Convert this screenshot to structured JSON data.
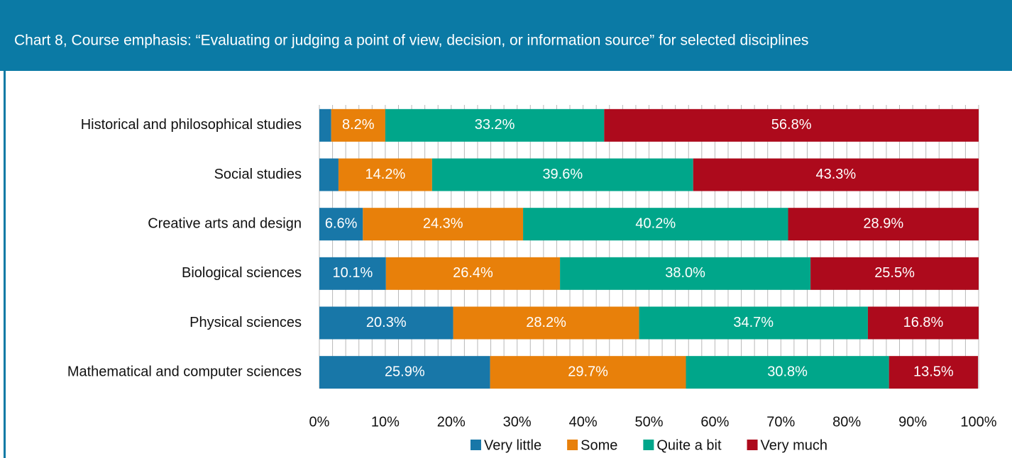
{
  "chart_data": {
    "type": "stacked-barh",
    "title": "Chart 8, Course emphasis: “Evaluating or judging a point of view, decision, or information source” for selected disciplines",
    "categories": [
      "Historical and philosophical studies",
      "Social studies",
      "Creative arts and design",
      "Biological sciences",
      "Physical sciences",
      "Mathematical and computer sciences"
    ],
    "series": [
      {
        "name": "Very little",
        "color": "#1877a8",
        "values": [
          1.8,
          2.9,
          6.6,
          10.1,
          20.3,
          25.9
        ],
        "value_labels": [
          null,
          null,
          "6.6%",
          "10.1%",
          "20.3%",
          "25.9%"
        ]
      },
      {
        "name": "Some",
        "color": "#e8800a",
        "values": [
          8.2,
          14.2,
          24.3,
          26.4,
          28.2,
          29.7
        ],
        "value_labels": [
          "8.2%",
          "14.2%",
          "24.3%",
          "26.4%",
          "28.2%",
          "29.7%"
        ]
      },
      {
        "name": "Quite a bit",
        "color": "#00a68a",
        "values": [
          33.2,
          39.6,
          40.2,
          38.0,
          34.7,
          30.8
        ],
        "value_labels": [
          "33.2%",
          "39.6%",
          "40.2%",
          "38.0%",
          "34.7%",
          "30.8%"
        ]
      },
      {
        "name": "Very much",
        "color": "#ad0a1c",
        "values": [
          56.8,
          43.3,
          28.9,
          25.5,
          16.8,
          13.5
        ],
        "value_labels": [
          "56.8%",
          "43.3%",
          "28.9%",
          "25.5%",
          "16.8%",
          "13.5%"
        ]
      }
    ],
    "xlim": [
      0,
      100
    ],
    "xticks": [
      {
        "value": 0,
        "label": "0%"
      },
      {
        "value": 10,
        "label": "10%"
      },
      {
        "value": 20,
        "label": "20%"
      },
      {
        "value": 30,
        "label": "30%"
      },
      {
        "value": 40,
        "label": "40%"
      },
      {
        "value": 50,
        "label": "50%"
      },
      {
        "value": 60,
        "label": "60%"
      },
      {
        "value": 70,
        "label": "70%"
      },
      {
        "value": 80,
        "label": "80%"
      },
      {
        "value": 90,
        "label": "90%"
      },
      {
        "value": 100,
        "label": "100%"
      }
    ],
    "minor_xticks": [
      0,
      2,
      4,
      6,
      8,
      10,
      12,
      14,
      16,
      18,
      20,
      22,
      24,
      26,
      28,
      30,
      32,
      34,
      36,
      38,
      40,
      42,
      44,
      46,
      48,
      50,
      52,
      54,
      56,
      58,
      60,
      62,
      64,
      66,
      68,
      70,
      72,
      74,
      76,
      78,
      80,
      82,
      84,
      86,
      88,
      90,
      92,
      94,
      96,
      98,
      100
    ],
    "grid": true,
    "legend": "bottom"
  }
}
